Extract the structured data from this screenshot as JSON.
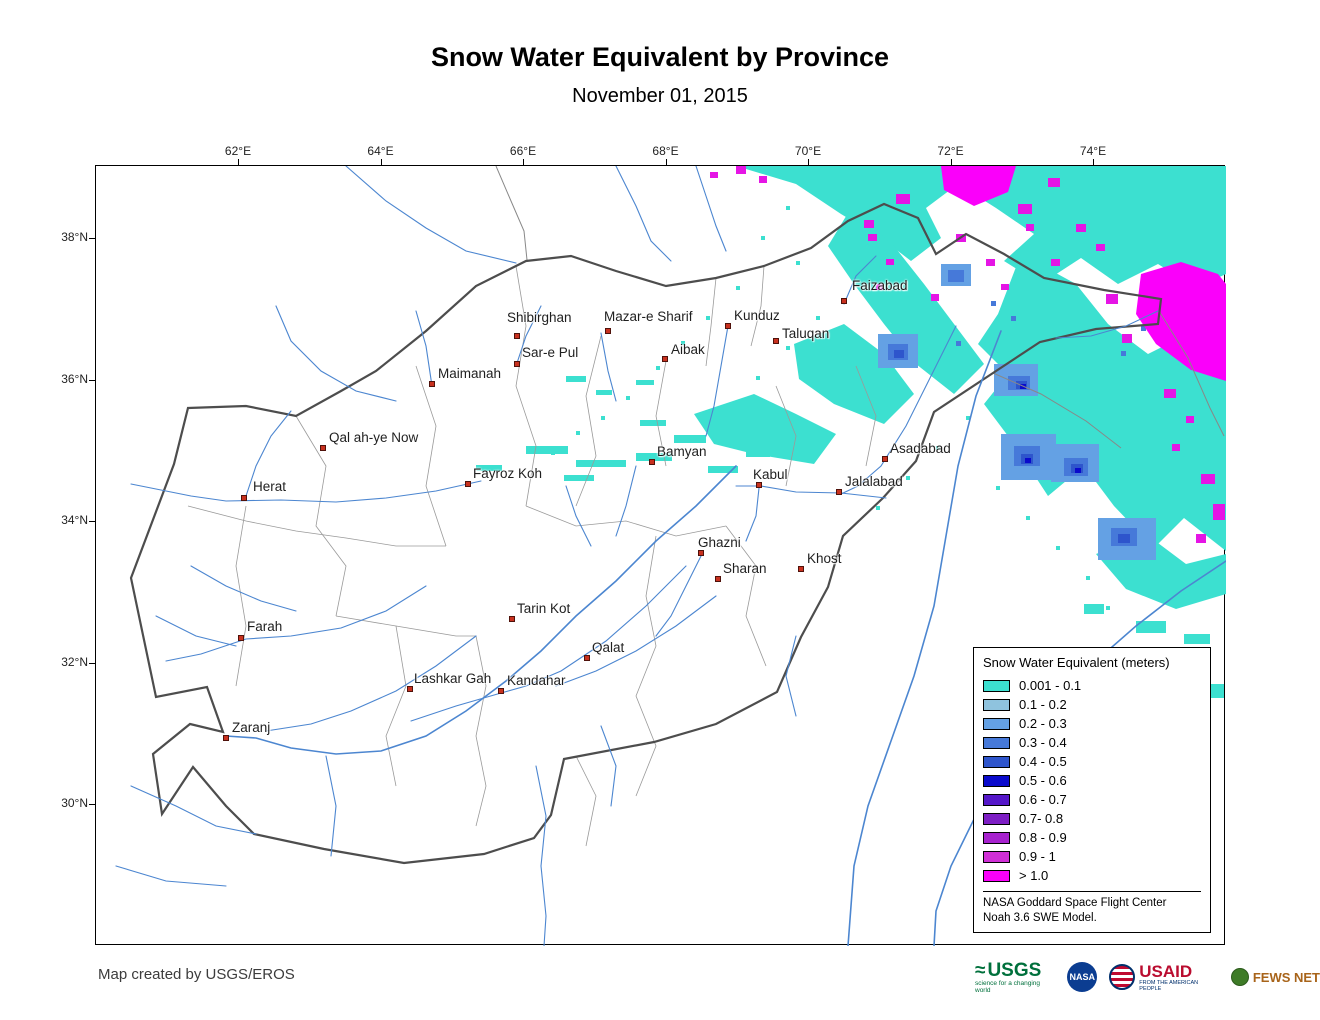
{
  "header": {
    "title": "Snow Water Equivalent by Province",
    "subtitle": "November 01, 2015"
  },
  "axes": {
    "lon_labels": [
      "62°E",
      "64°E",
      "66°E",
      "68°E",
      "70°E",
      "72°E",
      "74°E"
    ],
    "lat_labels": [
      "38°N",
      "36°N",
      "34°N",
      "32°N",
      "30°N"
    ]
  },
  "cities": [
    {
      "name": "Faizabad",
      "dot": [
        748,
        135
      ],
      "label": [
        756,
        112
      ]
    },
    {
      "name": "Shibirghan",
      "dot": [
        421,
        170
      ],
      "label": [
        411,
        144
      ]
    },
    {
      "name": "Mazar-e Sharif",
      "dot": [
        512,
        165
      ],
      "label": [
        508,
        143
      ]
    },
    {
      "name": "Kunduz",
      "dot": [
        632,
        160
      ],
      "label": [
        638,
        142
      ]
    },
    {
      "name": "Taluqan",
      "dot": [
        680,
        175
      ],
      "label": [
        686,
        160
      ]
    },
    {
      "name": "Aibak",
      "dot": [
        569,
        193
      ],
      "label": [
        575,
        176
      ]
    },
    {
      "name": "Sar-e Pul",
      "dot": [
        421,
        198
      ],
      "label": [
        426,
        179
      ]
    },
    {
      "name": "Maimanah",
      "dot": [
        336,
        218
      ],
      "label": [
        342,
        200
      ]
    },
    {
      "name": "Qal ah-ye Now",
      "dot": [
        227,
        282
      ],
      "label": [
        233,
        264
      ]
    },
    {
      "name": "Bamyan",
      "dot": [
        556,
        296
      ],
      "label": [
        561,
        278
      ]
    },
    {
      "name": "Kabul",
      "dot": [
        663,
        319
      ],
      "label": [
        657,
        301
      ]
    },
    {
      "name": "Asadabad",
      "dot": [
        789,
        293
      ],
      "label": [
        794,
        275
      ]
    },
    {
      "name": "Jalalabad",
      "dot": [
        743,
        326
      ],
      "label": [
        749,
        308
      ]
    },
    {
      "name": "Fayroz Koh",
      "dot": [
        372,
        318
      ],
      "label": [
        377,
        300
      ]
    },
    {
      "name": "Herat",
      "dot": [
        148,
        332
      ],
      "label": [
        157,
        313
      ]
    },
    {
      "name": "Ghazni",
      "dot": [
        605,
        387
      ],
      "label": [
        602,
        369
      ]
    },
    {
      "name": "Khost",
      "dot": [
        705,
        403
      ],
      "label": [
        711,
        385
      ]
    },
    {
      "name": "Sharan",
      "dot": [
        622,
        413
      ],
      "label": [
        627,
        395
      ]
    },
    {
      "name": "Tarin Kot",
      "dot": [
        416,
        453
      ],
      "label": [
        421,
        435
      ]
    },
    {
      "name": "Farah",
      "dot": [
        145,
        472
      ],
      "label": [
        151,
        453
      ]
    },
    {
      "name": "Qalat",
      "dot": [
        491,
        492
      ],
      "label": [
        496,
        474
      ]
    },
    {
      "name": "Lashkar Gah",
      "dot": [
        314,
        523
      ],
      "label": [
        318,
        505
      ]
    },
    {
      "name": "Kandahar",
      "dot": [
        405,
        525
      ],
      "label": [
        411,
        507
      ]
    },
    {
      "name": "Zaranj",
      "dot": [
        130,
        572
      ],
      "label": [
        136,
        554
      ]
    }
  ],
  "legend": {
    "title": "Snow Water Equivalent (meters)",
    "entries": [
      {
        "label": "0.001 - 0.1",
        "color": "#3CE0D0"
      },
      {
        "label": "0.1 - 0.2",
        "color": "#8FC3DE"
      },
      {
        "label": "0.2 - 0.3",
        "color": "#64A1E4"
      },
      {
        "label": "0.3 - 0.4",
        "color": "#4679D9"
      },
      {
        "label": "0.4 - 0.5",
        "color": "#2E55CC"
      },
      {
        "label": "0.5 - 0.6",
        "color": "#0A0ACC"
      },
      {
        "label": "0.6 - 0.7",
        "color": "#5517C9"
      },
      {
        "label": "0.7- 0.8",
        "color": "#7D1EC4"
      },
      {
        "label": "0.8 - 0.9",
        "color": "#A722CE"
      },
      {
        "label": "0.9 - 1",
        "color": "#D02FD6"
      },
      {
        "label": "> 1.0",
        "color": "#FA00FA"
      }
    ],
    "note1": "NASA Goddard Space Flight Center",
    "note2": "Noah 3.6 SWE Model."
  },
  "footer": {
    "credit": "Map created by USGS/EROS"
  },
  "logos": {
    "usgs": {
      "text": "USGS",
      "tagline": "science for a changing world"
    },
    "nasa": {
      "text": "NASA"
    },
    "usaid": {
      "text": "USAID",
      "tagline": "FROM THE AMERICAN PEOPLE"
    },
    "fews_net": {
      "text": "FEWS NET"
    }
  }
}
